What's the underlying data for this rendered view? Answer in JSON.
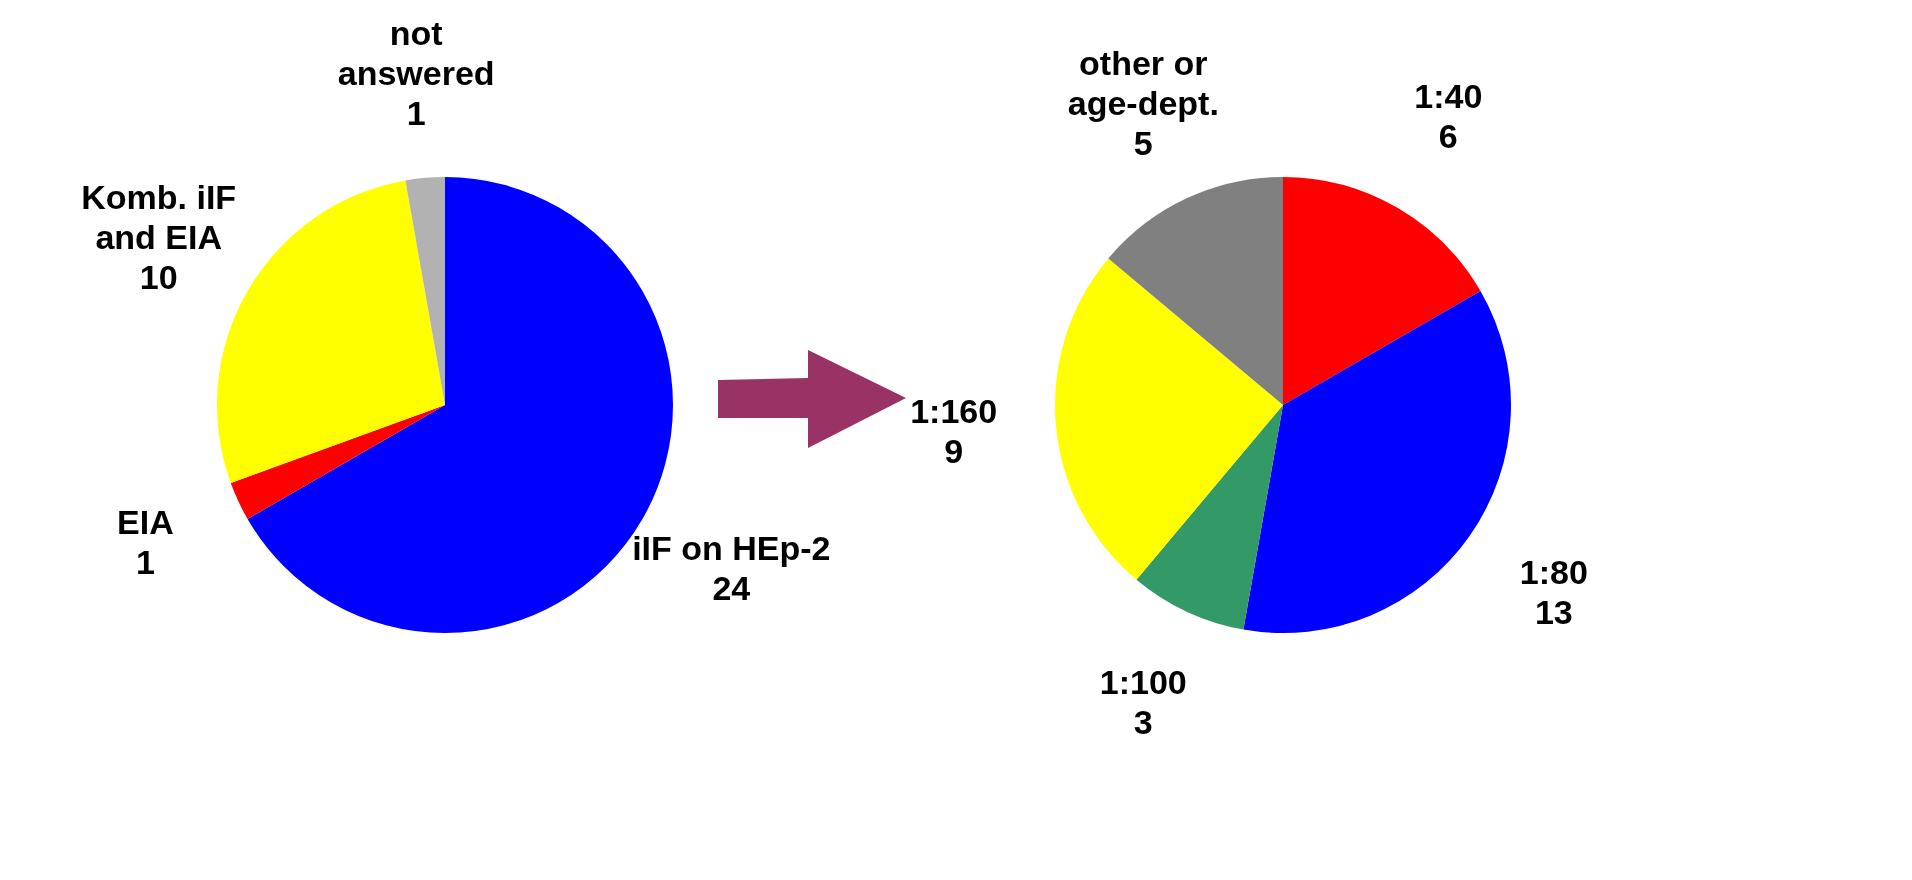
{
  "chart_data": [
    {
      "type": "pie",
      "categories": [
        "iIF on HEp-2",
        "EIA",
        "Komb. iIF and EIA",
        "not answered"
      ],
      "values": [
        24,
        1,
        10,
        1
      ],
      "colors": [
        "#0000ff",
        "#ff0000",
        "#ffff00",
        "#b2b2b2"
      ],
      "data_labels": true,
      "legend": false
    },
    {
      "type": "pie",
      "categories": [
        "1:40",
        "1:80",
        "1:100",
        "1:160",
        "other or age-dept."
      ],
      "values": [
        6,
        13,
        3,
        9,
        5
      ],
      "colors": [
        "#ff0000",
        "#0000ff",
        "#339966",
        "#ffff00",
        "#808080"
      ],
      "data_labels": true,
      "legend": false
    }
  ]
}
